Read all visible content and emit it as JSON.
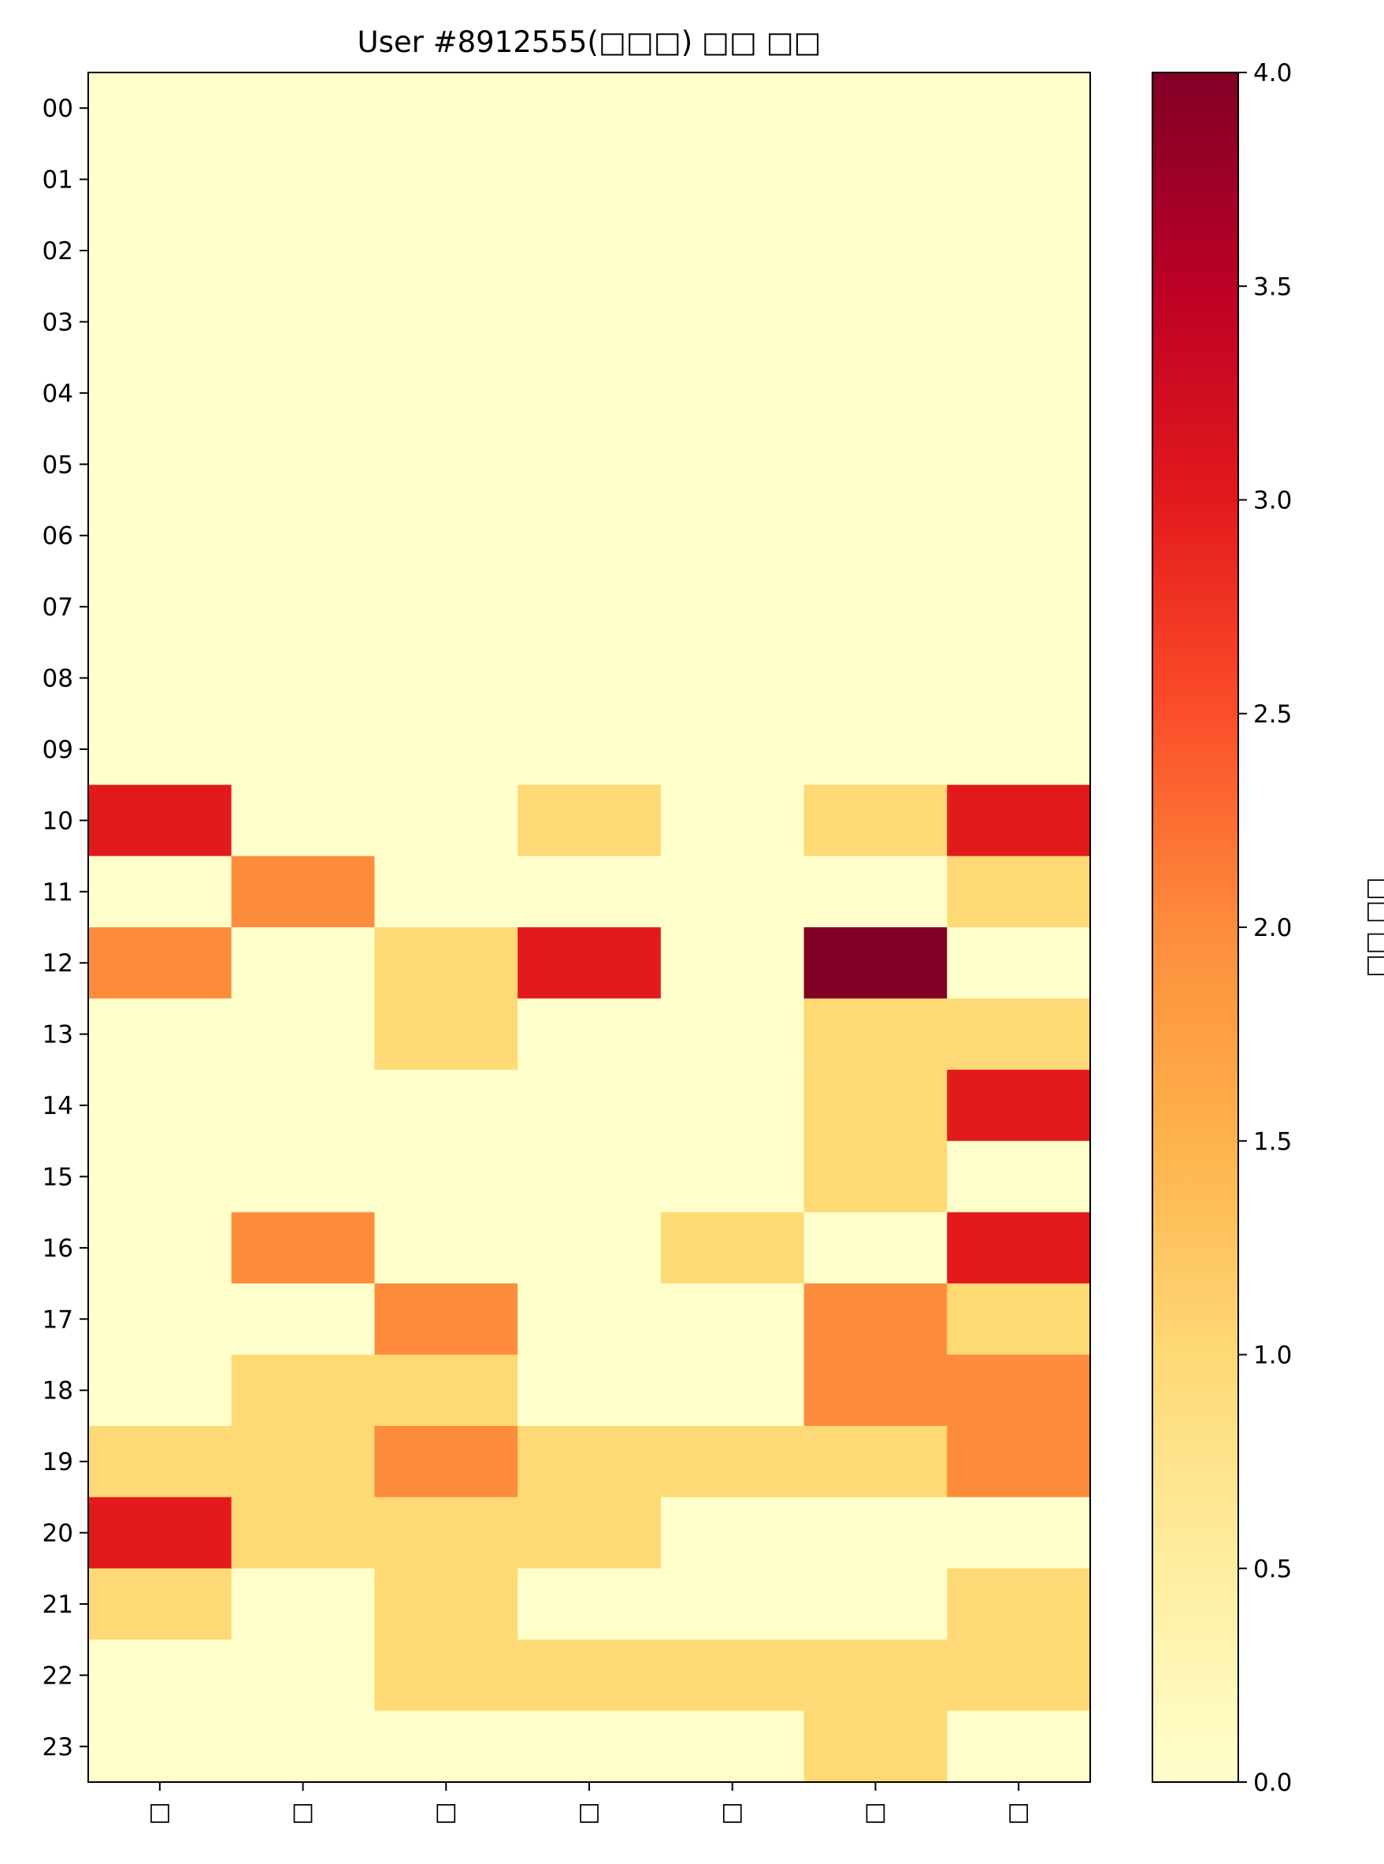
{
  "chart_data": {
    "type": "heatmap",
    "title": "User #8912555(□□□) □□ □□",
    "x_categories": [
      "□",
      "□",
      "□",
      "□",
      "□",
      "□",
      "□"
    ],
    "y_categories": [
      "00",
      "01",
      "02",
      "03",
      "04",
      "05",
      "06",
      "07",
      "08",
      "09",
      "10",
      "11",
      "12",
      "13",
      "14",
      "15",
      "16",
      "17",
      "18",
      "19",
      "20",
      "21",
      "22",
      "23"
    ],
    "values": [
      [
        0,
        0,
        0,
        0,
        0,
        0,
        0
      ],
      [
        0,
        0,
        0,
        0,
        0,
        0,
        0
      ],
      [
        0,
        0,
        0,
        0,
        0,
        0,
        0
      ],
      [
        0,
        0,
        0,
        0,
        0,
        0,
        0
      ],
      [
        0,
        0,
        0,
        0,
        0,
        0,
        0
      ],
      [
        0,
        0,
        0,
        0,
        0,
        0,
        0
      ],
      [
        0,
        0,
        0,
        0,
        0,
        0,
        0
      ],
      [
        0,
        0,
        0,
        0,
        0,
        0,
        0
      ],
      [
        0,
        0,
        0,
        0,
        0,
        0,
        0
      ],
      [
        0,
        0,
        0,
        0,
        0,
        0,
        0
      ],
      [
        3,
        0,
        0,
        1,
        0,
        1,
        3
      ],
      [
        0,
        2,
        0,
        0,
        0,
        0,
        1
      ],
      [
        2,
        0,
        1,
        3,
        0,
        4,
        0
      ],
      [
        0,
        0,
        1,
        0,
        0,
        1,
        1
      ],
      [
        0,
        0,
        0,
        0,
        0,
        1,
        3
      ],
      [
        0,
        0,
        0,
        0,
        0,
        1,
        0
      ],
      [
        0,
        2,
        0,
        0,
        1,
        0,
        3
      ],
      [
        0,
        0,
        2,
        0,
        0,
        2,
        1
      ],
      [
        0,
        1,
        1,
        0,
        0,
        2,
        2
      ],
      [
        1,
        1,
        2,
        1,
        1,
        1,
        2
      ],
      [
        3,
        1,
        1,
        1,
        0,
        0,
        0
      ],
      [
        1,
        0,
        1,
        0,
        0,
        0,
        1
      ],
      [
        0,
        0,
        1,
        1,
        1,
        1,
        1
      ],
      [
        0,
        0,
        0,
        0,
        0,
        1,
        0
      ]
    ],
    "colormap": "YlOrRd",
    "colorbar": {
      "label": "□□ □□",
      "min": 0,
      "max": 4,
      "ticks": [
        "0.0",
        "0.5",
        "1.0",
        "1.5",
        "2.0",
        "2.5",
        "3.0",
        "3.5",
        "4.0"
      ]
    },
    "grid": false,
    "legend": "none"
  }
}
